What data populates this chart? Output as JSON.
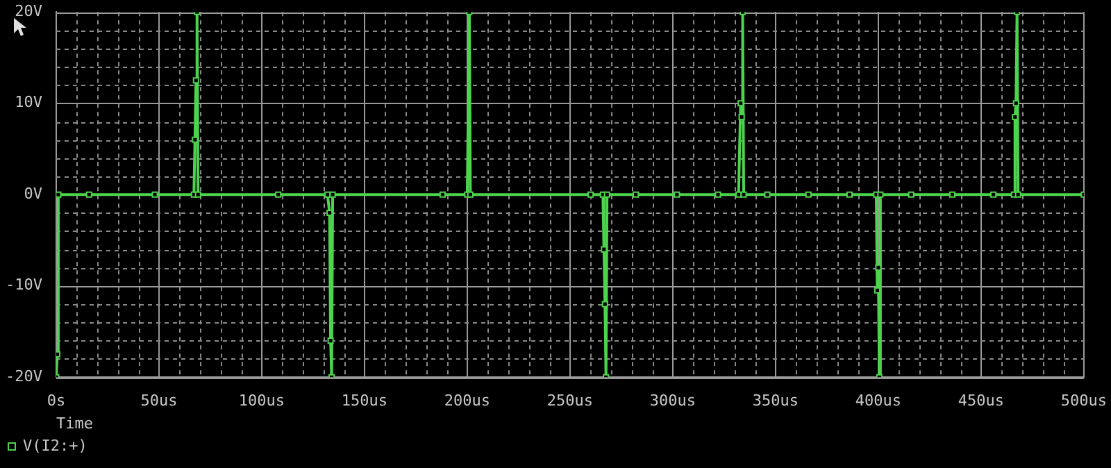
{
  "chart_data": {
    "type": "line",
    "xlabel": "Time",
    "legend": "bottom left",
    "grid": true,
    "marker": "square",
    "line_style": "solid",
    "xlim": [
      0,
      500
    ],
    "xticks": [
      {
        "value": 0,
        "label": "0s"
      },
      {
        "value": 10,
        "label": null
      },
      {
        "value": 20,
        "label": null
      },
      {
        "value": 30,
        "label": null
      },
      {
        "value": 40,
        "label": null
      },
      {
        "value": 50,
        "label": "50us"
      },
      {
        "value": 60,
        "label": null
      },
      {
        "value": 70,
        "label": null
      },
      {
        "value": 80,
        "label": null
      },
      {
        "value": 90,
        "label": null
      },
      {
        "value": 100,
        "label": "100us"
      },
      {
        "value": 110,
        "label": null
      },
      {
        "value": 120,
        "label": null
      },
      {
        "value": 130,
        "label": null
      },
      {
        "value": 140,
        "label": null
      },
      {
        "value": 150,
        "label": "150us"
      },
      {
        "value": 160,
        "label": null
      },
      {
        "value": 170,
        "label": null
      },
      {
        "value": 180,
        "label": null
      },
      {
        "value": 190,
        "label": null
      },
      {
        "value": 200,
        "label": "200us"
      },
      {
        "value": 210,
        "label": null
      },
      {
        "value": 220,
        "label": null
      },
      {
        "value": 230,
        "label": null
      },
      {
        "value": 240,
        "label": null
      },
      {
        "value": 250,
        "label": "250us"
      },
      {
        "value": 260,
        "label": null
      },
      {
        "value": 270,
        "label": null
      },
      {
        "value": 280,
        "label": null
      },
      {
        "value": 290,
        "label": null
      },
      {
        "value": 300,
        "label": "300us"
      },
      {
        "value": 310,
        "label": null
      },
      {
        "value": 320,
        "label": null
      },
      {
        "value": 330,
        "label": null
      },
      {
        "value": 340,
        "label": null
      },
      {
        "value": 350,
        "label": "350us"
      },
      {
        "value": 360,
        "label": null
      },
      {
        "value": 370,
        "label": null
      },
      {
        "value": 380,
        "label": null
      },
      {
        "value": 390,
        "label": null
      },
      {
        "value": 400,
        "label": "400us"
      },
      {
        "value": 410,
        "label": null
      },
      {
        "value": 420,
        "label": null
      },
      {
        "value": 430,
        "label": null
      },
      {
        "value": 440,
        "label": null
      },
      {
        "value": 450,
        "label": "450us"
      },
      {
        "value": 460,
        "label": null
      },
      {
        "value": 470,
        "label": null
      },
      {
        "value": 480,
        "label": null
      },
      {
        "value": 490,
        "label": null
      },
      {
        "value": 500,
        "label": "500us"
      }
    ],
    "ylim": [
      -20,
      20
    ],
    "yticks": [
      {
        "value": -20,
        "label": "-20V"
      },
      {
        "value": -18,
        "label": null
      },
      {
        "value": -16,
        "label": null
      },
      {
        "value": -14,
        "label": null
      },
      {
        "value": -12,
        "label": null
      },
      {
        "value": -10,
        "label": "-10V"
      },
      {
        "value": -8,
        "label": null
      },
      {
        "value": -6,
        "label": null
      },
      {
        "value": -4,
        "label": null
      },
      {
        "value": -2,
        "label": null
      },
      {
        "value": 0,
        "label": "0V"
      },
      {
        "value": 2,
        "label": null
      },
      {
        "value": 4,
        "label": null
      },
      {
        "value": 6,
        "label": null
      },
      {
        "value": 8,
        "label": null
      },
      {
        "value": 10,
        "label": "10V"
      },
      {
        "value": 12,
        "label": null
      },
      {
        "value": 14,
        "label": null
      },
      {
        "value": 16,
        "label": null
      },
      {
        "value": 18,
        "label": null
      },
      {
        "value": 20,
        "label": "20V"
      }
    ],
    "series": [
      {
        "name": "V(I2:+)",
        "color": "#4cd44c",
        "x": [
          0,
          0.5,
          1,
          16,
          48,
          67,
          67.5,
          68,
          68.5,
          69,
          108,
          132,
          133,
          133.5,
          134,
          134.5,
          188,
          200,
          201,
          201.5,
          260,
          266,
          266.5,
          267,
          267.5,
          268,
          282,
          302,
          322,
          332,
          333,
          333.5,
          334,
          334.5,
          346,
          366,
          386,
          399,
          399.5,
          400,
          400.5,
          401,
          416,
          436,
          456,
          466,
          466.5,
          467,
          467.5,
          468,
          500
        ],
        "values": [
          -20,
          -17.5,
          0,
          0,
          0,
          0,
          6,
          12.5,
          20,
          0,
          0,
          0,
          -2,
          -16,
          -20,
          0,
          0,
          0,
          20,
          0,
          0,
          0,
          -6,
          -12,
          -20,
          0,
          0,
          0,
          0,
          0,
          10,
          8.5,
          20,
          0,
          0,
          0,
          0,
          0,
          -10.5,
          -8,
          -20,
          0,
          0,
          0,
          0,
          0,
          8.5,
          10,
          20,
          0,
          0
        ]
      }
    ]
  }
}
